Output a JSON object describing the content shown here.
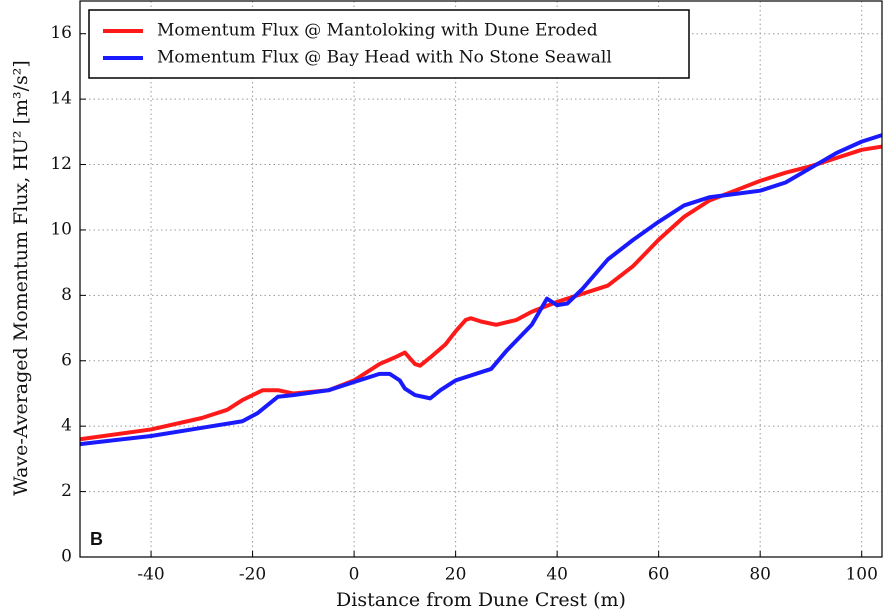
{
  "chart_data": {
    "type": "line",
    "xlabel": "Distance from Dune Crest (m)",
    "ylabel": "Wave-Averaged Momentum Flux, HU² [m³/s²]",
    "annotation": "B",
    "xlim": [
      -54,
      104
    ],
    "ylim": [
      0,
      17
    ],
    "xticks": [
      -40,
      -20,
      0,
      20,
      40,
      60,
      80,
      100
    ],
    "yticks": [
      0,
      2,
      4,
      6,
      8,
      10,
      12,
      14,
      16
    ],
    "grid": true,
    "legend": "upper left",
    "series": [
      {
        "name": "Momentum Flux @ Mantoloking with Dune Eroded",
        "color": "#ff1a1a",
        "x": [
          -54,
          -40,
          -30,
          -25,
          -22,
          -18,
          -15,
          -12,
          -5,
          0,
          5,
          8,
          10,
          12,
          13,
          15,
          18,
          20,
          22,
          23,
          25,
          28,
          32,
          35,
          40,
          45,
          50,
          55,
          60,
          65,
          70,
          75,
          80,
          85,
          90,
          95,
          100,
          104
        ],
        "values": [
          3.6,
          3.9,
          4.25,
          4.5,
          4.8,
          5.1,
          5.1,
          5.0,
          5.1,
          5.4,
          5.9,
          6.1,
          6.25,
          5.9,
          5.85,
          6.1,
          6.5,
          6.9,
          7.25,
          7.3,
          7.2,
          7.1,
          7.25,
          7.5,
          7.8,
          8.05,
          8.3,
          8.9,
          9.7,
          10.4,
          10.9,
          11.2,
          11.5,
          11.75,
          11.95,
          12.2,
          12.45,
          12.55
        ]
      },
      {
        "name": "Momentum Flux @ Bay Head with No Stone Seawall",
        "color": "#1a1aff",
        "x": [
          -54,
          -40,
          -30,
          -22,
          -19,
          -15,
          -12,
          -5,
          0,
          5,
          7,
          9,
          10,
          12,
          15,
          17,
          20,
          25,
          27,
          30,
          35,
          38,
          40,
          42,
          45,
          50,
          55,
          60,
          65,
          70,
          75,
          80,
          85,
          90,
          95,
          100,
          104
        ],
        "values": [
          3.45,
          3.7,
          3.95,
          4.15,
          4.4,
          4.9,
          4.95,
          5.1,
          5.35,
          5.6,
          5.6,
          5.4,
          5.15,
          4.95,
          4.85,
          5.1,
          5.4,
          5.65,
          5.75,
          6.3,
          7.1,
          7.9,
          7.7,
          7.75,
          8.2,
          9.1,
          9.7,
          10.25,
          10.75,
          11.0,
          11.1,
          11.2,
          11.45,
          11.9,
          12.35,
          12.7,
          12.9
        ]
      }
    ]
  }
}
